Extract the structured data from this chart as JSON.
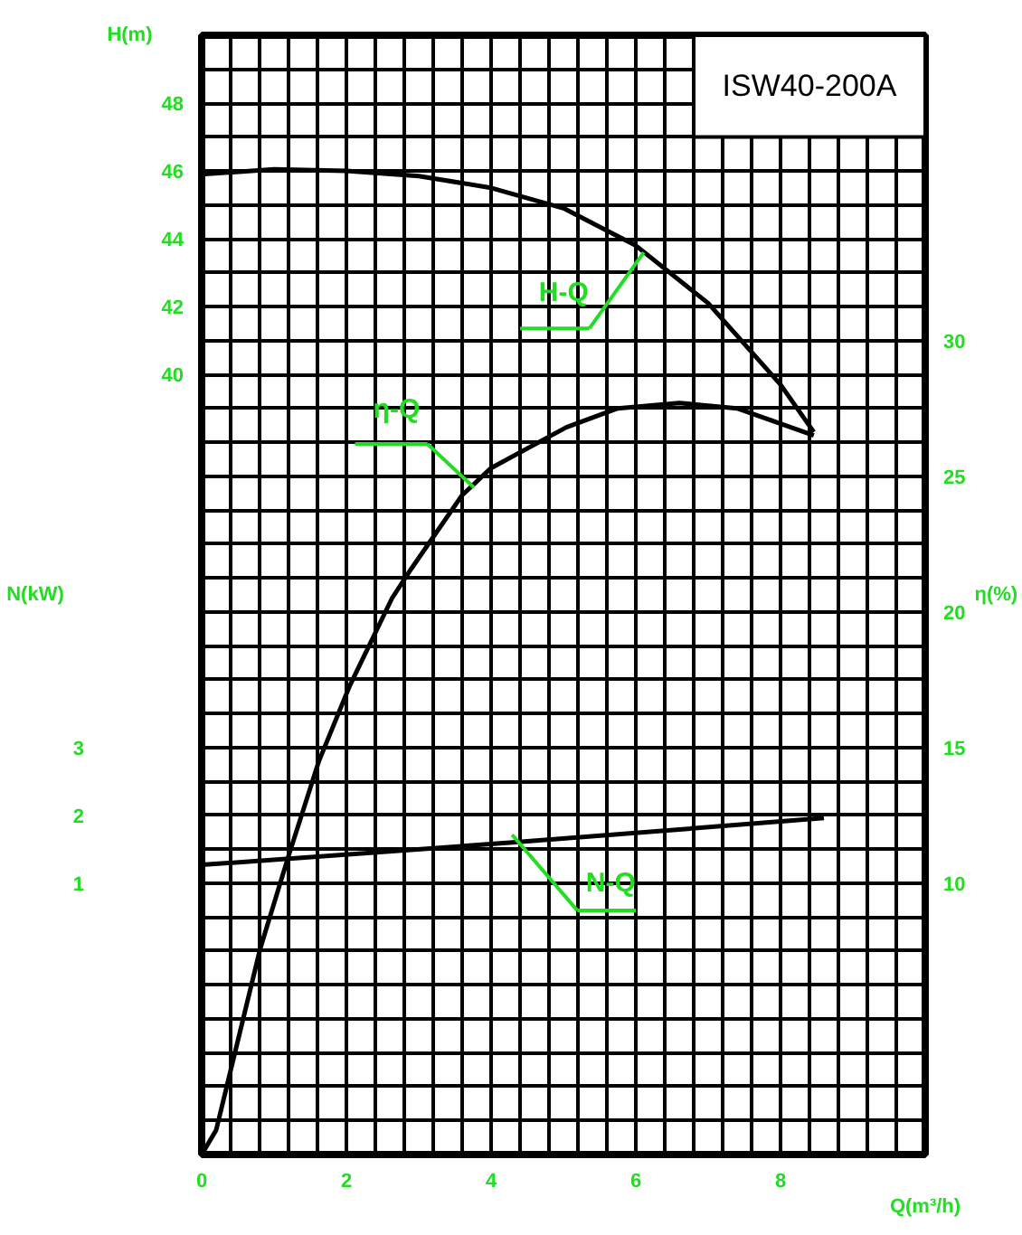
{
  "chart_data": {
    "type": "line",
    "title": "ISW40-200A",
    "xlabel": "Q(m³/h)",
    "ylabel": "H(m)",
    "y2label": "η(%)",
    "y3label": "N(kW)",
    "xlim": [
      0,
      10
    ],
    "xticks": [
      0,
      2,
      4,
      6,
      8
    ],
    "ylim": [
      17,
      50
    ],
    "yticks": [
      40,
      42,
      44,
      46,
      48
    ],
    "y2lim": [
      0,
      41.25
    ],
    "y2ticks": [
      10,
      15,
      20,
      25,
      30
    ],
    "y3lim": [
      -3,
      13.5
    ],
    "y3ticks": [
      1,
      2,
      3
    ],
    "grid": true,
    "line_style": "solid",
    "annotations": [
      {
        "text": "H-Q",
        "x": 6.11,
        "y": 43.6
      },
      {
        "text": "η-Q",
        "x": 3.76,
        "y": 36.67
      },
      {
        "text": "N-Q",
        "x": 4.29,
        "y": 26.43
      }
    ],
    "series": [
      {
        "color": "#000000",
        "x": [
          0,
          1,
          2,
          3,
          4,
          5,
          6,
          7,
          7.5,
          8,
          8.46
        ],
        "values": [
          45.9,
          46.05,
          46.0,
          45.85,
          45.5,
          44.9,
          43.8,
          42.1,
          40.9,
          39.7,
          38.3
        ]
      },
      {
        "color": "#000000",
        "axis": "y2",
        "x": [
          0,
          0.2,
          0.81,
          1.2,
          1.62,
          2.05,
          2.63,
          2.9,
          3.6,
          4,
          5.04,
          5.75,
          6.6,
          7.4,
          8.46
        ],
        "values": [
          0,
          0.9,
          7.6,
          11,
          14.5,
          17.3,
          20.5,
          21.6,
          24.3,
          25.3,
          26.8,
          27.5,
          27.7,
          27.5,
          26.5
        ]
      },
      {
        "color": "#000000",
        "axis": "y3",
        "x": [
          0,
          4.3,
          8.6
        ],
        "values": [
          1.27,
          1.6,
          1.96
        ]
      }
    ]
  }
}
